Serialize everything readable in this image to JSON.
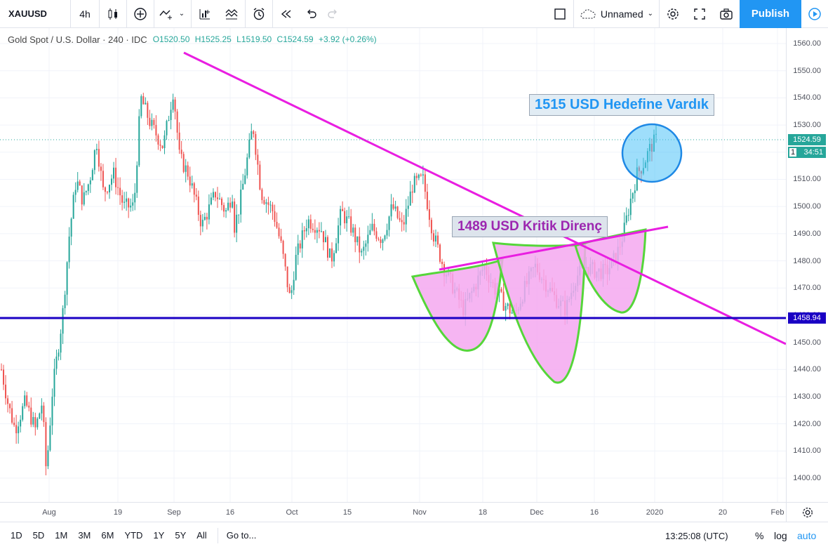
{
  "toolbar": {
    "symbol": "XAUUSD",
    "interval": "4h",
    "layout_name": "Unnamed",
    "publish_label": "Publish"
  },
  "legend": {
    "title": "Gold Spot / U.S. Dollar · 240 · IDC",
    "open": "O1520.50",
    "high": "H1525.25",
    "low": "L1519.50",
    "close": "C1524.59",
    "change": "+3.92 (+0.26%)"
  },
  "price_axis": {
    "labels": [
      "1560.00",
      "1550.00",
      "1540.00",
      "1530.00",
      "1520.00",
      "1510.00",
      "1500.00",
      "1490.00",
      "1480.00",
      "1470.00",
      "1460.00",
      "1450.00",
      "1440.00",
      "1430.00",
      "1420.00",
      "1410.00",
      "1400.00"
    ],
    "last_price": "1524.59",
    "countdown": "34:51",
    "countdown_prefix": "1",
    "hline_price": "1458.94"
  },
  "time_axis": {
    "labels": [
      "Aug",
      "19",
      "Sep",
      "16",
      "Oct",
      "15",
      "Nov",
      "18",
      "Dec",
      "16",
      "2020",
      "20",
      "Feb"
    ]
  },
  "annotations": {
    "target": "1515 USD Hedefine Vardık",
    "resistance": "1489 USD Kritik Direnç"
  },
  "bottom": {
    "ranges": [
      "1D",
      "5D",
      "1M",
      "3M",
      "6M",
      "YTD",
      "1Y",
      "5Y",
      "All"
    ],
    "goto": "Go to...",
    "clock": "13:25:08 (UTC)",
    "percent": "%",
    "log": "log",
    "auto": "auto"
  },
  "colors": {
    "up": "#26a69a",
    "down": "#ef5350",
    "trend": "#e91ee1",
    "support": "#1a00c4",
    "accent": "#2196f3"
  },
  "chart_data": {
    "type": "candlestick",
    "ylim": [
      1397,
      1567
    ],
    "x_range": [
      "2019-07-15",
      "2020-02-05"
    ],
    "waypoints": [
      [
        0.0,
        1440
      ],
      [
        0.01,
        1427
      ],
      [
        0.02,
        1418
      ],
      [
        0.035,
        1428
      ],
      [
        0.05,
        1418
      ],
      [
        0.06,
        1428
      ],
      [
        0.066,
        1402
      ],
      [
        0.075,
        1432
      ],
      [
        0.09,
        1460
      ],
      [
        0.1,
        1490
      ],
      [
        0.11,
        1510
      ],
      [
        0.12,
        1502
      ],
      [
        0.13,
        1510
      ],
      [
        0.14,
        1524
      ],
      [
        0.15,
        1505
      ],
      [
        0.165,
        1512
      ],
      [
        0.18,
        1500
      ],
      [
        0.195,
        1500
      ],
      [
        0.205,
        1540
      ],
      [
        0.22,
        1530
      ],
      [
        0.238,
        1522
      ],
      [
        0.253,
        1543
      ],
      [
        0.262,
        1518
      ],
      [
        0.275,
        1512
      ],
      [
        0.295,
        1493
      ],
      [
        0.315,
        1505
      ],
      [
        0.33,
        1498
      ],
      [
        0.34,
        1505
      ],
      [
        0.335,
        1485
      ],
      [
        0.35,
        1500
      ],
      [
        0.362,
        1518
      ],
      [
        0.37,
        1530
      ],
      [
        0.382,
        1505
      ],
      [
        0.4,
        1498
      ],
      [
        0.412,
        1485
      ],
      [
        0.425,
        1465
      ],
      [
        0.432,
        1480
      ],
      [
        0.45,
        1495
      ],
      [
        0.47,
        1492
      ],
      [
        0.485,
        1480
      ],
      [
        0.5,
        1498
      ],
      [
        0.515,
        1492
      ],
      [
        0.53,
        1482
      ],
      [
        0.545,
        1492
      ],
      [
        0.56,
        1488
      ],
      [
        0.575,
        1500
      ],
      [
        0.59,
        1492
      ],
      [
        0.605,
        1508
      ],
      [
        0.62,
        1510
      ],
      [
        0.635,
        1490
      ],
      [
        0.65,
        1478
      ],
      [
        0.665,
        1470
      ],
      [
        0.68,
        1462
      ],
      [
        0.695,
        1470
      ],
      [
        0.71,
        1478
      ],
      [
        0.725,
        1470
      ],
      [
        0.74,
        1464
      ],
      [
        0.755,
        1460
      ],
      [
        0.77,
        1470
      ],
      [
        0.785,
        1478
      ],
      [
        0.8,
        1472
      ],
      [
        0.815,
        1466
      ],
      [
        0.83,
        1462
      ],
      [
        0.845,
        1474
      ],
      [
        0.86,
        1478
      ],
      [
        0.875,
        1476
      ],
      [
        0.89,
        1476
      ],
      [
        0.905,
        1482
      ],
      [
        0.915,
        1490
      ],
      [
        0.925,
        1502
      ],
      [
        0.935,
        1512
      ],
      [
        0.945,
        1516
      ],
      [
        0.955,
        1522
      ],
      [
        0.963,
        1524.59
      ]
    ]
  }
}
